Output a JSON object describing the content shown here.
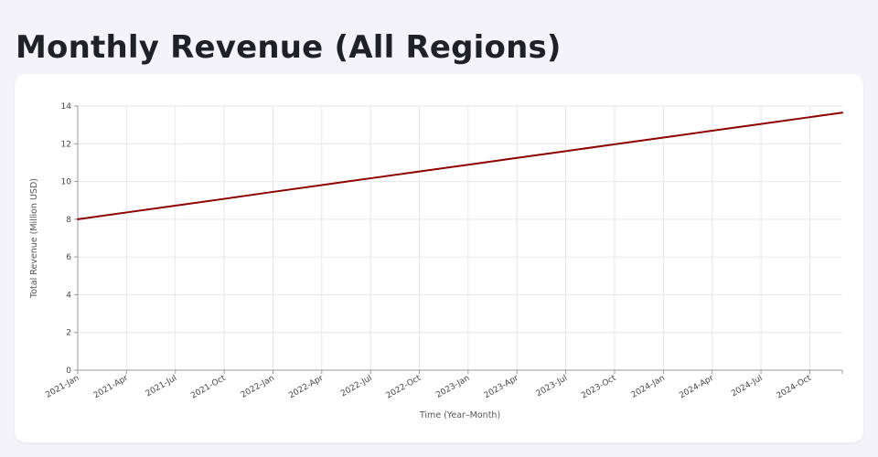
{
  "page": {
    "title": "Monthly Revenue (All Regions)",
    "caption": ""
  },
  "colors": {
    "line": "#8b0000",
    "background": "#f4f4f8",
    "card": "#ffffff"
  },
  "chart_data": {
    "type": "line",
    "title": "",
    "xlabel": "Time (Year–Month)",
    "ylabel": "Total Revenue (Million USD)",
    "ylim": [
      0,
      14
    ],
    "xlim": [
      "2021-01",
      "2024-12"
    ],
    "grid": true,
    "y_ticks": [
      0,
      2,
      4,
      6,
      8,
      10,
      12,
      14
    ],
    "x_tick_labels": [
      "2021-Jan",
      "2021-Apr",
      "2021-Jul",
      "2021-Oct",
      "2022-Jan",
      "2022-Apr",
      "2022-Jul",
      "2022-Oct",
      "2023-Jan",
      "2023-Apr",
      "2023-Jul",
      "2023-Oct",
      "2024-Jan",
      "2024-Apr",
      "2024-Jul",
      "2024-Oct"
    ],
    "series": [
      {
        "name": "",
        "color": "#8b0000",
        "x": [
          "2021-01",
          "2021-04",
          "2021-07",
          "2021-10",
          "2022-01",
          "2022-04",
          "2022-07",
          "2022-10",
          "2023-01",
          "2023-04",
          "2023-07",
          "2023-10",
          "2024-01",
          "2024-04",
          "2024-07",
          "2024-10",
          "2024-12"
        ],
        "y": [
          8.0,
          8.36,
          8.72,
          9.08,
          9.45,
          9.81,
          10.17,
          10.53,
          10.89,
          11.25,
          11.61,
          11.97,
          12.33,
          12.69,
          13.05,
          13.41,
          13.65
        ]
      }
    ]
  }
}
